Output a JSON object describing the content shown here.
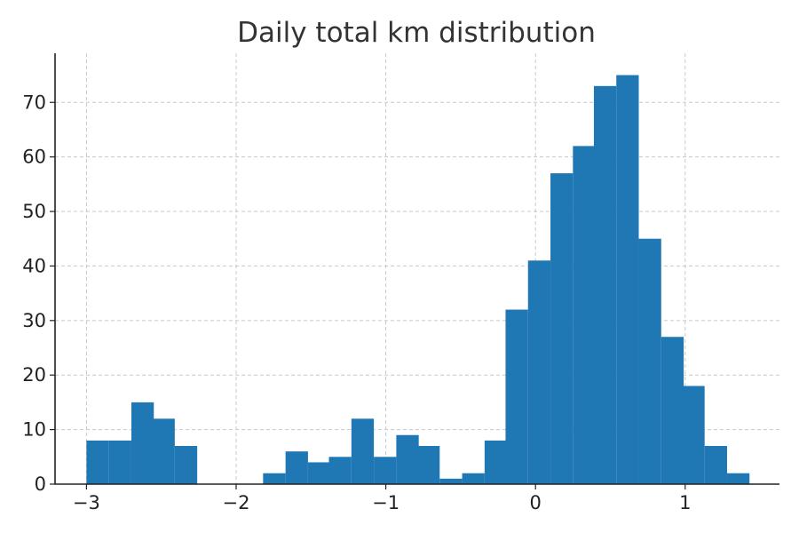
{
  "chart_data": {
    "type": "bar",
    "title": "Daily total km distribution",
    "xlabel": "",
    "ylabel": "",
    "bin_width": 0.1475,
    "bins": [
      {
        "x": -3.0,
        "count": 8
      },
      {
        "x": -2.85,
        "count": 8
      },
      {
        "x": -2.7,
        "count": 15
      },
      {
        "x": -2.56,
        "count": 12
      },
      {
        "x": -2.41,
        "count": 7
      },
      {
        "x": -2.26,
        "count": 0
      },
      {
        "x": -2.11,
        "count": 0
      },
      {
        "x": -1.97,
        "count": 0
      },
      {
        "x": -1.82,
        "count": 2
      },
      {
        "x": -1.67,
        "count": 6
      },
      {
        "x": -1.52,
        "count": 4
      },
      {
        "x": -1.38,
        "count": 5
      },
      {
        "x": -1.23,
        "count": 12
      },
      {
        "x": -1.08,
        "count": 5
      },
      {
        "x": -0.93,
        "count": 9
      },
      {
        "x": -0.79,
        "count": 7
      },
      {
        "x": -0.64,
        "count": 1
      },
      {
        "x": -0.49,
        "count": 2
      },
      {
        "x": -0.34,
        "count": 8
      },
      {
        "x": -0.2,
        "count": 32
      },
      {
        "x": -0.05,
        "count": 41
      },
      {
        "x": 0.1,
        "count": 57
      },
      {
        "x": 0.25,
        "count": 62
      },
      {
        "x": 0.39,
        "count": 73
      },
      {
        "x": 0.54,
        "count": 75
      },
      {
        "x": 0.69,
        "count": 45
      },
      {
        "x": 0.84,
        "count": 27
      },
      {
        "x": 0.98,
        "count": 18
      },
      {
        "x": 1.13,
        "count": 7
      },
      {
        "x": 1.28,
        "count": 2
      }
    ],
    "xlim": [
      -3.21,
      1.63
    ],
    "ylim": [
      0,
      79
    ],
    "x_ticks": [
      {
        "value": -3,
        "label": "−3"
      },
      {
        "value": -2,
        "label": "−2"
      },
      {
        "value": -1,
        "label": "−1"
      },
      {
        "value": 0,
        "label": "0"
      },
      {
        "value": 1,
        "label": "1"
      }
    ],
    "y_ticks": [
      {
        "value": 0,
        "label": "0"
      },
      {
        "value": 10,
        "label": "10"
      },
      {
        "value": 20,
        "label": "20"
      },
      {
        "value": 30,
        "label": "30"
      },
      {
        "value": 40,
        "label": "40"
      },
      {
        "value": 50,
        "label": "50"
      },
      {
        "value": 60,
        "label": "60"
      },
      {
        "value": 70,
        "label": "70"
      }
    ],
    "grid": true,
    "bar_color": "#1f77b4"
  }
}
